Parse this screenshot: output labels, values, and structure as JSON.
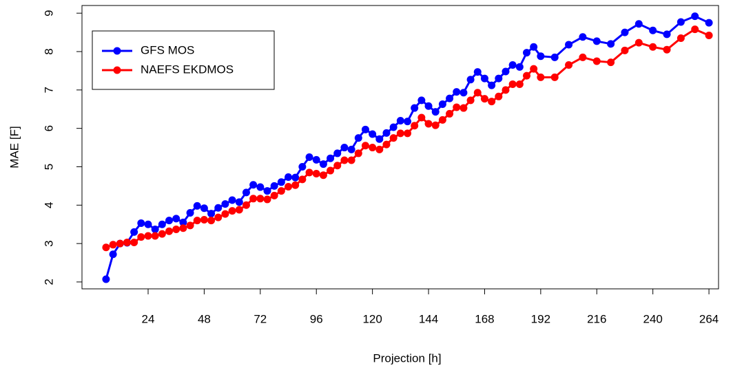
{
  "chart_data": {
    "type": "line",
    "x_label": "Projection [h]",
    "y_label": "MAE [F]",
    "x": [
      6,
      9,
      12,
      15,
      18,
      21,
      24,
      27,
      30,
      33,
      36,
      39,
      42,
      45,
      48,
      51,
      54,
      57,
      60,
      63,
      66,
      69,
      72,
      75,
      78,
      81,
      84,
      87,
      90,
      93,
      96,
      99,
      102,
      105,
      108,
      111,
      114,
      117,
      120,
      123,
      126,
      129,
      132,
      135,
      138,
      141,
      144,
      147,
      150,
      153,
      156,
      159,
      162,
      165,
      168,
      171,
      174,
      177,
      180,
      183,
      186,
      189,
      192,
      198,
      204,
      210,
      216,
      222,
      228,
      234,
      240,
      246,
      252,
      258,
      264
    ],
    "series": [
      {
        "name": "GFS MOS",
        "color": "#0000ff",
        "values": [
          2.07,
          2.72,
          3.0,
          3.02,
          3.3,
          3.53,
          3.5,
          3.37,
          3.5,
          3.6,
          3.65,
          3.55,
          3.8,
          3.98,
          3.92,
          3.78,
          3.93,
          4.03,
          4.13,
          4.08,
          4.33,
          4.53,
          4.47,
          4.37,
          4.5,
          4.6,
          4.73,
          4.72,
          5.0,
          5.25,
          5.18,
          5.07,
          5.22,
          5.35,
          5.5,
          5.45,
          5.75,
          5.97,
          5.85,
          5.72,
          5.88,
          6.03,
          6.2,
          6.18,
          6.53,
          6.73,
          6.58,
          6.43,
          6.63,
          6.78,
          6.95,
          6.93,
          7.27,
          7.47,
          7.3,
          7.12,
          7.3,
          7.48,
          7.65,
          7.6,
          7.97,
          8.12,
          7.88,
          7.85,
          8.18,
          8.38,
          8.27,
          8.2,
          8.5,
          8.72,
          8.55,
          8.45,
          8.77,
          8.92,
          8.75
        ]
      },
      {
        "name": "NAEFS EKDMOS",
        "color": "#ff0000",
        "values": [
          2.9,
          2.97,
          3.0,
          3.03,
          3.03,
          3.17,
          3.2,
          3.2,
          3.25,
          3.32,
          3.37,
          3.4,
          3.47,
          3.6,
          3.62,
          3.6,
          3.68,
          3.77,
          3.85,
          3.88,
          4.0,
          4.17,
          4.17,
          4.15,
          4.25,
          4.37,
          4.48,
          4.52,
          4.67,
          4.85,
          4.82,
          4.78,
          4.9,
          5.03,
          5.17,
          5.17,
          5.35,
          5.55,
          5.5,
          5.45,
          5.58,
          5.75,
          5.87,
          5.87,
          6.07,
          6.28,
          6.12,
          6.08,
          6.22,
          6.38,
          6.55,
          6.53,
          6.73,
          6.93,
          6.77,
          6.7,
          6.83,
          7.0,
          7.15,
          7.15,
          7.37,
          7.55,
          7.33,
          7.33,
          7.65,
          7.85,
          7.75,
          7.72,
          8.03,
          8.23,
          8.12,
          8.05,
          8.35,
          8.58,
          8.42
        ]
      }
    ],
    "xlim": [
      -4.3,
      268.1
    ],
    "ylim": [
      1.82,
      9.2
    ],
    "xticks": [
      24,
      48,
      72,
      96,
      120,
      144,
      168,
      192,
      216,
      240,
      264
    ],
    "yticks": [
      2,
      3,
      4,
      5,
      6,
      7,
      8,
      9
    ],
    "legend": "top-left",
    "grid": false
  }
}
